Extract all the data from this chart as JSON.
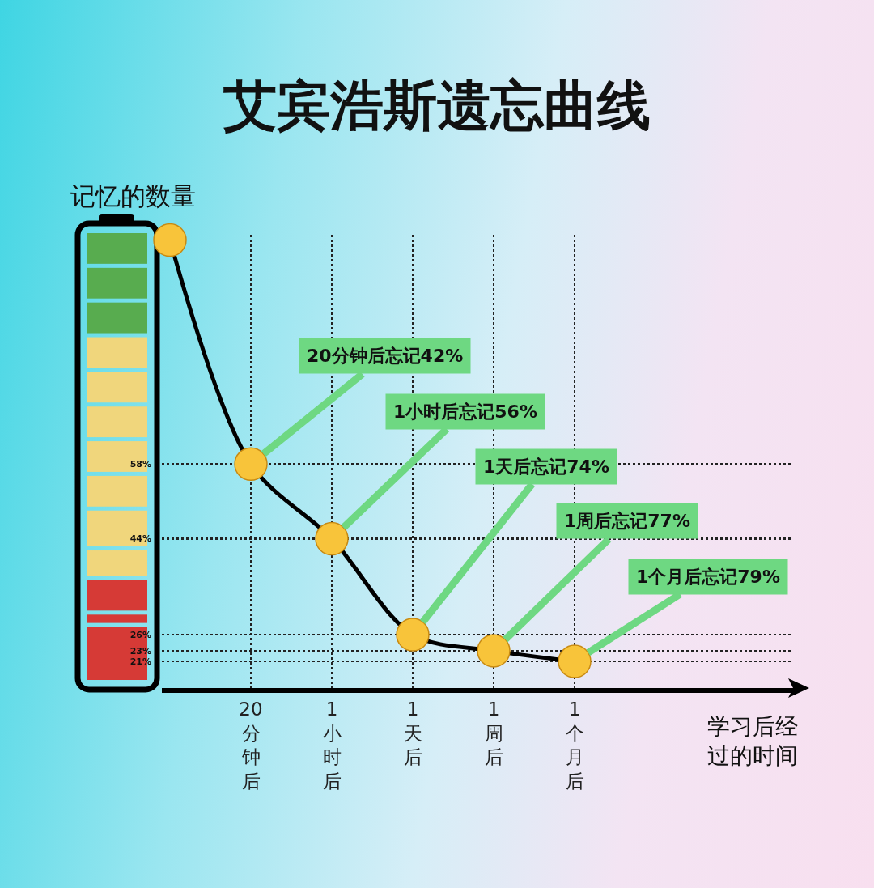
{
  "chart_data": {
    "type": "line",
    "title": "艾宾浩斯遗忘曲线",
    "ylabel": "记忆的数量",
    "xlabel": "学习后经过的时间",
    "categories": [
      null,
      "20分钟后",
      "1小时后",
      "1天后",
      "1周后",
      "1个月后"
    ],
    "series": [
      {
        "color": "#000000",
        "colors": [
          "#f8c43a",
          "#f8c43a",
          "#f8c43a",
          "#f8c43a",
          "#f8c43a",
          "#f8c43a"
        ],
        "values": [
          100,
          58,
          44,
          26,
          23,
          21
        ]
      }
    ],
    "ylim": [
      16,
      101
    ],
    "yticks": [
      {
        "value": 58,
        "label": "58%"
      },
      {
        "value": 44,
        "label": "44%"
      },
      {
        "value": 26,
        "label": "26%"
      },
      {
        "value": 23,
        "label": "23%"
      },
      {
        "value": 21,
        "label": "21%"
      }
    ],
    "annotations": [
      {
        "text": "20分钟后忘记42%",
        "x": "20分钟后",
        "y": 58
      },
      {
        "text": "1小时后忘记56%",
        "x": "1小时后",
        "y": 44
      },
      {
        "text": "1天后忘记74%",
        "x": "1天后",
        "y": 26
      },
      {
        "text": "1周后忘记77%",
        "x": "1周后",
        "y": 23
      },
      {
        "text": "1个月后忘记79%",
        "x": "1个月后",
        "y": 21
      }
    ],
    "grid": true,
    "marker": "circle",
    "line_style": "solid"
  }
}
